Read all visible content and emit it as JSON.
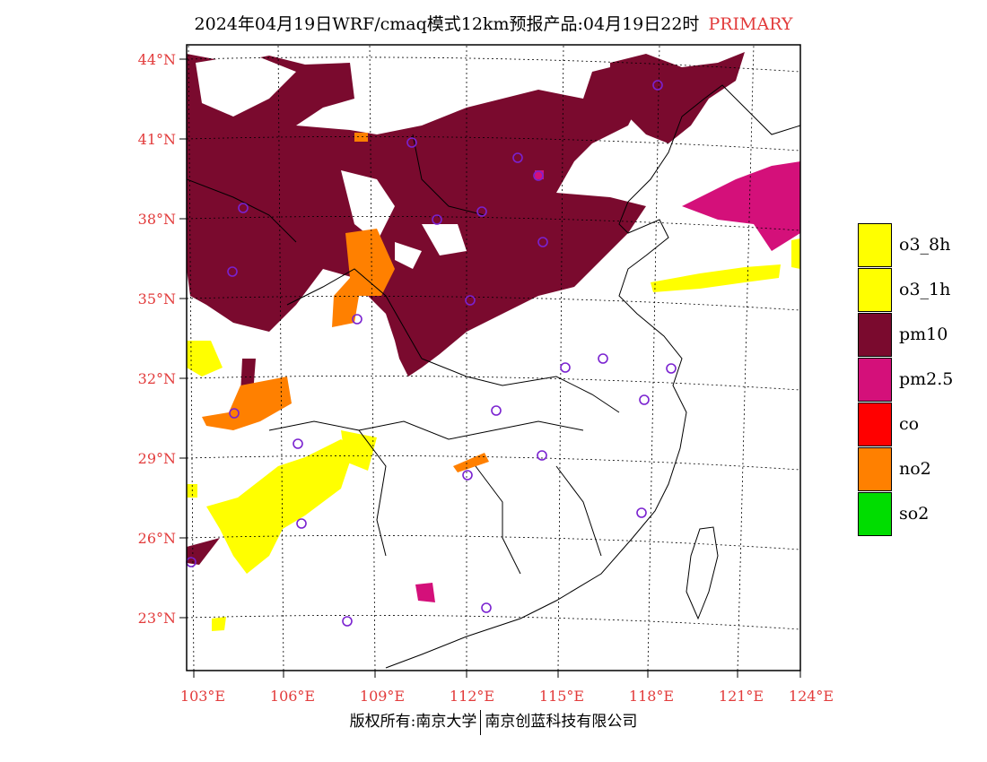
{
  "title": {
    "main": "2024年04月19日WRF/cmaq模式12km预报产品:04月19日22时",
    "tag": "PRIMARY"
  },
  "lat_labels": [
    "44°N",
    "41°N",
    "38°N",
    "35°N",
    "32°N",
    "29°N",
    "26°N",
    "23°N"
  ],
  "lon_labels": [
    "103°E",
    "106°E",
    "109°E",
    "112°E",
    "115°E",
    "118°E",
    "121°E",
    "124°E"
  ],
  "legend": [
    {
      "label": "o3_8h",
      "color": "#ffff00"
    },
    {
      "label": "o3_1h",
      "color": "#ffff00"
    },
    {
      "label": "pm10",
      "color": "#7a0a2e"
    },
    {
      "label": "pm2.5",
      "color": "#d4107a"
    },
    {
      "label": "co",
      "color": "#ff0000"
    },
    {
      "label": "no2",
      "color": "#ff8000"
    },
    {
      "label": "so2",
      "color": "#00dd00"
    }
  ],
  "footer": {
    "left": "版权所有:南京大学",
    "right": "南京创蓝科技有限公司"
  },
  "colors": {
    "pm10": "#7a0a2e",
    "pm25": "#d4107a",
    "no2": "#ff8000",
    "o3": "#ffff00",
    "station": "#7a22d0",
    "axis": "#e23b3b"
  }
}
